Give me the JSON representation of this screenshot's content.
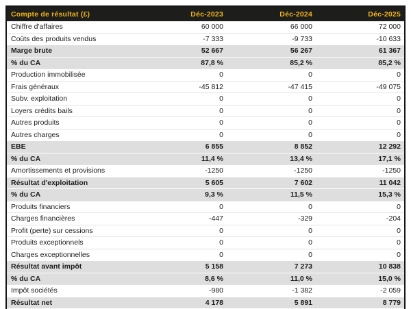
{
  "table": {
    "header": {
      "label": "Compte de résultat (£)",
      "columns": [
        "Déc-2023",
        "Déc-2024",
        "Déc-2025"
      ]
    },
    "rows": [
      {
        "label": "Chiffre d'affaires",
        "values": [
          "60 000",
          "66 000",
          "72 000"
        ],
        "highlight": false
      },
      {
        "label": "Coûts des produits vendus",
        "values": [
          "-7 333",
          "-9 733",
          "-10 633"
        ],
        "highlight": false
      },
      {
        "label": "Marge brute",
        "values": [
          "52 667",
          "56 267",
          "61 367"
        ],
        "highlight": true
      },
      {
        "label": "% du CA",
        "values": [
          "87,8 %",
          "85,2 %",
          "85,2 %"
        ],
        "highlight": true
      },
      {
        "label": "Production immobilisée",
        "values": [
          "0",
          "0",
          "0"
        ],
        "highlight": false
      },
      {
        "label": "Frais généraux",
        "values": [
          "-45 812",
          "-47 415",
          "-49 075"
        ],
        "highlight": false
      },
      {
        "label": "Subv. exploitation",
        "values": [
          "0",
          "0",
          "0"
        ],
        "highlight": false
      },
      {
        "label": "Loyers crédits bails",
        "values": [
          "0",
          "0",
          "0"
        ],
        "highlight": false
      },
      {
        "label": "Autres produits",
        "values": [
          "0",
          "0",
          "0"
        ],
        "highlight": false
      },
      {
        "label": "Autres charges",
        "values": [
          "0",
          "0",
          "0"
        ],
        "highlight": false
      },
      {
        "label": "EBE",
        "values": [
          "6 855",
          "8 852",
          "12 292"
        ],
        "highlight": true
      },
      {
        "label": "% du CA",
        "values": [
          "11,4 %",
          "13,4 %",
          "17,1 %"
        ],
        "highlight": true
      },
      {
        "label": "Amortissements et provisions",
        "values": [
          "-1250",
          "-1250",
          "-1250"
        ],
        "highlight": false
      },
      {
        "label": "Résultat d'exploitation",
        "values": [
          "5 605",
          "7 602",
          "11 042"
        ],
        "highlight": true
      },
      {
        "label": "% du CA",
        "values": [
          "9,3 %",
          "11,5 %",
          "15,3 %"
        ],
        "highlight": true
      },
      {
        "label": "Produits financiers",
        "values": [
          "0",
          "0",
          "0"
        ],
        "highlight": false
      },
      {
        "label": "Charges financières",
        "values": [
          "-447",
          "-329",
          "-204"
        ],
        "highlight": false
      },
      {
        "label": "Profit (perte) sur cessions",
        "values": [
          "0",
          "0",
          "0"
        ],
        "highlight": false
      },
      {
        "label": "Produits exceptionnels",
        "values": [
          "0",
          "0",
          "0"
        ],
        "highlight": false
      },
      {
        "label": "Charges exceptionnelles",
        "values": [
          "0",
          "0",
          "0"
        ],
        "highlight": false
      },
      {
        "label": "Résultat avant impôt",
        "values": [
          "5 158",
          "7 273",
          "10 838"
        ],
        "highlight": true
      },
      {
        "label": "% du CA",
        "values": [
          "8,6 %",
          "11,0 %",
          "15,0 %"
        ],
        "highlight": true
      },
      {
        "label": "Impôt sociétés",
        "values": [
          "-980",
          "-1 382",
          "-2 059"
        ],
        "highlight": false
      },
      {
        "label": "Résultat net",
        "values": [
          "4 178",
          "5 891",
          "8 779"
        ],
        "highlight": true
      },
      {
        "label": "% du CA",
        "values": [
          "7,0 %",
          "8,9 %",
          "12,2 %"
        ],
        "highlight": true
      }
    ],
    "colors": {
      "header_bg": "#1d1d1b",
      "header_text": "#f0b41b",
      "highlight_bg": "#dedede",
      "text": "#1c1c1c"
    }
  }
}
